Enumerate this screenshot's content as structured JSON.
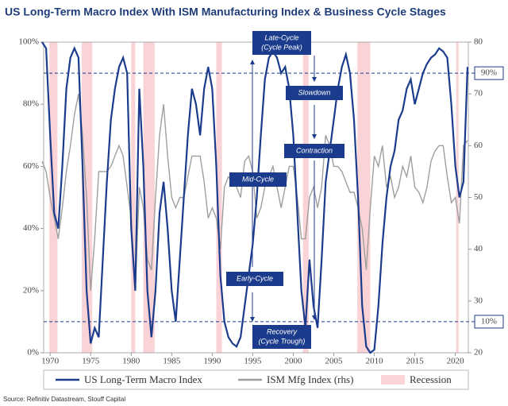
{
  "chart_data": {
    "type": "line",
    "title": "US Long-Term Macro Index With ISM Manufacturing Index & Business Cycle Stages",
    "source": "Source: Refinitiv Datastream, Stouff Capital",
    "x": [
      1969.0,
      1969.5,
      1970.0,
      1970.5,
      1971.0,
      1971.5,
      1972.0,
      1972.5,
      1973.0,
      1973.5,
      1974.0,
      1974.5,
      1975.0,
      1975.5,
      1976.0,
      1976.5,
      1977.0,
      1977.5,
      1978.0,
      1978.5,
      1979.0,
      1979.5,
      1980.0,
      1980.5,
      1981.0,
      1981.5,
      1982.0,
      1982.5,
      1983.0,
      1983.5,
      1984.0,
      1984.5,
      1985.0,
      1985.5,
      1986.0,
      1986.5,
      1987.0,
      1987.5,
      1988.0,
      1988.5,
      1989.0,
      1989.5,
      1990.0,
      1990.5,
      1991.0,
      1991.5,
      1992.0,
      1992.5,
      1993.0,
      1993.5,
      1994.0,
      1994.5,
      1995.0,
      1995.5,
      1996.0,
      1996.5,
      1997.0,
      1997.5,
      1998.0,
      1998.5,
      1999.0,
      1999.5,
      2000.0,
      2000.5,
      2001.0,
      2001.5,
      2002.0,
      2002.5,
      2003.0,
      2003.5,
      2004.0,
      2004.5,
      2005.0,
      2005.5,
      2006.0,
      2006.5,
      2007.0,
      2007.5,
      2008.0,
      2008.5,
      2009.0,
      2009.5,
      2010.0,
      2010.5,
      2011.0,
      2011.5,
      2012.0,
      2012.5,
      2013.0,
      2013.5,
      2014.0,
      2014.5,
      2015.0,
      2015.5,
      2016.0,
      2016.5,
      2017.0,
      2017.5,
      2018.0,
      2018.5,
      2019.0,
      2019.5,
      2020.0,
      2020.5,
      2021.0,
      2021.5
    ],
    "series": [
      {
        "name": "US Long-Term Macro Index",
        "color": "#1b3b8c",
        "axis": "y",
        "values": [
          100,
          98,
          70,
          45,
          40,
          60,
          85,
          95,
          98,
          95,
          60,
          20,
          3,
          8,
          5,
          30,
          55,
          75,
          85,
          92,
          95,
          90,
          40,
          20,
          85,
          60,
          20,
          5,
          20,
          45,
          55,
          40,
          20,
          10,
          30,
          50,
          70,
          85,
          80,
          70,
          85,
          92,
          85,
          60,
          25,
          10,
          5,
          3,
          2,
          5,
          15,
          25,
          35,
          50,
          70,
          88,
          95,
          97,
          95,
          90,
          92,
          85,
          70,
          45,
          20,
          8,
          30,
          15,
          8,
          30,
          55,
          65,
          75,
          85,
          92,
          96,
          90,
          75,
          50,
          15,
          2,
          0,
          1,
          15,
          35,
          50,
          60,
          65,
          75,
          78,
          85,
          88,
          80,
          85,
          90,
          93,
          95,
          96,
          98,
          97,
          95,
          80,
          60,
          50,
          55,
          92
        ]
      },
      {
        "name": "ISM Mfg Index (rhs)",
        "color": "#9e9e9e",
        "axis": "y2",
        "values": [
          57,
          55,
          50,
          46,
          42,
          48,
          55,
          60,
          66,
          70,
          62,
          50,
          32,
          42,
          55,
          55,
          55,
          56,
          58,
          60,
          58,
          52,
          46,
          32,
          52,
          48,
          38,
          36,
          50,
          62,
          68,
          58,
          50,
          48,
          50,
          50,
          54,
          58,
          58,
          58,
          53,
          46,
          48,
          46,
          40,
          52,
          54,
          53,
          52,
          50,
          57,
          58,
          55,
          46,
          48,
          52,
          54,
          56,
          52,
          48,
          52,
          56,
          56,
          50,
          42,
          42,
          50,
          52,
          48,
          52,
          62,
          60,
          56,
          56,
          55,
          53,
          51,
          51,
          48,
          44,
          36,
          48,
          58,
          56,
          60,
          52,
          54,
          50,
          52,
          56,
          54,
          58,
          52,
          51,
          49,
          52,
          57,
          59,
          60,
          60,
          54,
          49,
          50,
          45,
          60,
          61
        ]
      }
    ],
    "recession": {
      "name": "Recession",
      "color": "#f9d3d6",
      "periods": [
        [
          1969.9,
          1970.9
        ],
        [
          1973.9,
          1975.2
        ],
        [
          1980.0,
          1980.5
        ],
        [
          1981.5,
          1982.9
        ],
        [
          1990.5,
          1991.2
        ],
        [
          2001.2,
          2001.9
        ],
        [
          2007.9,
          2009.5
        ],
        [
          2020.1,
          2020.4
        ]
      ]
    },
    "xlim": [
      1969.2,
      2021.6
    ],
    "xticks": [
      1970,
      1975,
      1980,
      1985,
      1990,
      1995,
      2000,
      2005,
      2010,
      2015,
      2020
    ],
    "ylim": [
      0,
      100
    ],
    "yticks": [
      {
        "value": 0,
        "label": "0%"
      },
      {
        "value": 20,
        "label": "20%"
      },
      {
        "value": 40,
        "label": "40%"
      },
      {
        "value": 60,
        "label": "60%"
      },
      {
        "value": 80,
        "label": "80%"
      },
      {
        "value": 100,
        "label": "100%"
      }
    ],
    "y2lim": [
      20,
      80
    ],
    "y2ticks": [
      20,
      30,
      40,
      50,
      60,
      70,
      80
    ],
    "thresholds": [
      {
        "value": 90,
        "label": "90%"
      },
      {
        "value": 10,
        "label": "10%"
      }
    ],
    "stages": [
      {
        "lines": [
          "Late-Cycle",
          "(Cycle Peak)"
        ]
      },
      {
        "lines": [
          "Slowdown"
        ]
      },
      {
        "lines": [
          "Contraction"
        ]
      },
      {
        "lines": [
          "Mid-Cycle"
        ]
      },
      {
        "lines": [
          "Early-Cycle"
        ]
      },
      {
        "lines": [
          "Recovery",
          "(Cycle Trough)"
        ]
      }
    ],
    "legend": "bottom"
  }
}
